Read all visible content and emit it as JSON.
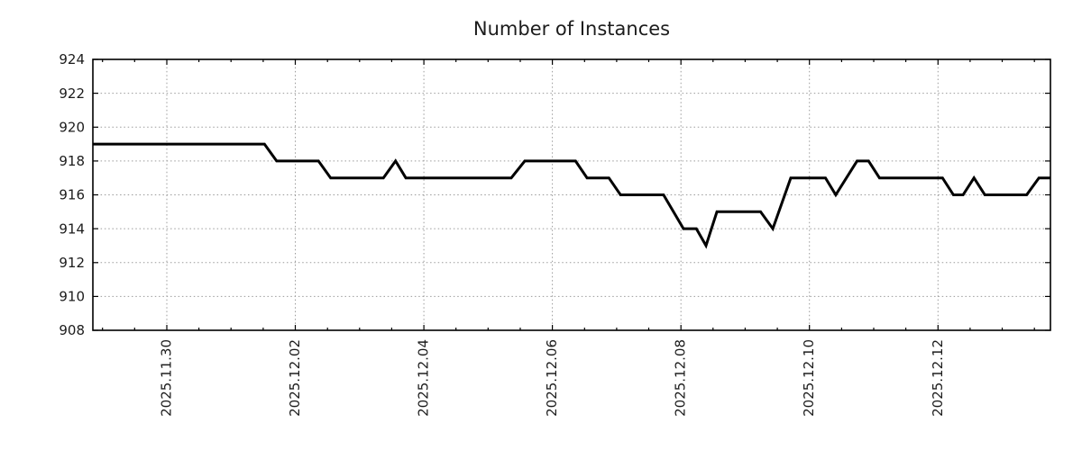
{
  "colors": {
    "background": "#ffffff",
    "line": "#000000",
    "grid": "#9b9b9b",
    "border": "#000000",
    "text": "#1c1c1c"
  },
  "chart_data": {
    "type": "line",
    "title": "Number of Instances",
    "grid": true,
    "legend": "none",
    "line_color": "#000000",
    "x_axis": {
      "label": "",
      "tick_labels": [
        "2025.11.30",
        "2025.12.02",
        "2025.12.04",
        "2025.12.06",
        "2025.12.08",
        "2025.12.10",
        "2025.12.12"
      ],
      "tick_day_offsets": [
        0,
        2,
        4,
        6,
        8,
        10,
        12
      ],
      "minor_tick_interval_days": 0.5,
      "range_days": [
        -1.15,
        13.75
      ]
    },
    "y_axis": {
      "label": "",
      "tick_values": [
        908,
        910,
        912,
        914,
        916,
        918,
        920,
        922,
        924
      ],
      "tick_labels": [
        "908",
        "910",
        "912",
        "914",
        "916",
        "918",
        "920",
        "922",
        "924"
      ],
      "gridline_values": [
        910,
        912,
        914,
        916,
        918,
        920,
        922
      ],
      "range": [
        908,
        924
      ]
    },
    "series": [
      {
        "name": "Number of Instances",
        "points_note": "x = days since 2025.11.30 00:00, y = instance count",
        "points": [
          [
            -1.15,
            919
          ],
          [
            1.52,
            919
          ],
          [
            1.71,
            918
          ],
          [
            2.36,
            918
          ],
          [
            2.55,
            917
          ],
          [
            3.37,
            917
          ],
          [
            3.56,
            918
          ],
          [
            3.72,
            917
          ],
          [
            5.36,
            917
          ],
          [
            5.57,
            918
          ],
          [
            6.36,
            918
          ],
          [
            6.54,
            917
          ],
          [
            6.88,
            917
          ],
          [
            7.06,
            916
          ],
          [
            7.73,
            916
          ],
          [
            8.04,
            914
          ],
          [
            8.24,
            914
          ],
          [
            8.39,
            913
          ],
          [
            8.56,
            915
          ],
          [
            9.24,
            915
          ],
          [
            9.43,
            914
          ],
          [
            9.71,
            917
          ],
          [
            10.25,
            917
          ],
          [
            10.41,
            916
          ],
          [
            10.74,
            918
          ],
          [
            10.92,
            918
          ],
          [
            11.09,
            917
          ],
          [
            12.07,
            917
          ],
          [
            12.24,
            916
          ],
          [
            12.39,
            916
          ],
          [
            12.56,
            917
          ],
          [
            12.73,
            916
          ],
          [
            13.38,
            916
          ],
          [
            13.57,
            917
          ],
          [
            13.75,
            917
          ]
        ]
      }
    ]
  }
}
